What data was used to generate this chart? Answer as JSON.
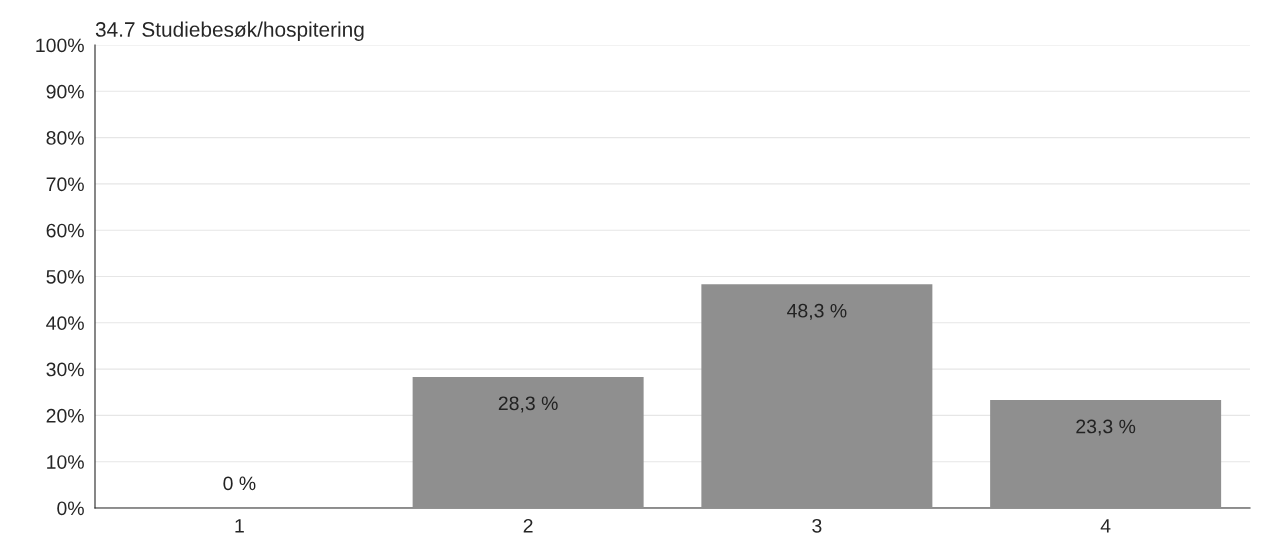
{
  "chart_data": {
    "type": "bar",
    "title": "34.7 Studiebesøk/hospitering",
    "categories": [
      "1",
      "2",
      "3",
      "4"
    ],
    "values": [
      0,
      28.3,
      48.3,
      23.3
    ],
    "value_labels": [
      "0 %",
      "28,3 %",
      "48,3 %",
      "23,3 %"
    ],
    "color": "#8f8f8f",
    "ylim": [
      0,
      100
    ],
    "yticks": [
      {
        "value": 0,
        "label": "0%"
      },
      {
        "value": 10,
        "label": "10%"
      },
      {
        "value": 20,
        "label": "20%"
      },
      {
        "value": 30,
        "label": "30%"
      },
      {
        "value": 40,
        "label": "40%"
      },
      {
        "value": 50,
        "label": "50%"
      },
      {
        "value": 60,
        "label": "60%"
      },
      {
        "value": 70,
        "label": "70%"
      },
      {
        "value": 80,
        "label": "80%"
      },
      {
        "value": 90,
        "label": "90%"
      },
      {
        "value": 100,
        "label": "100%"
      }
    ],
    "grid": "y"
  }
}
